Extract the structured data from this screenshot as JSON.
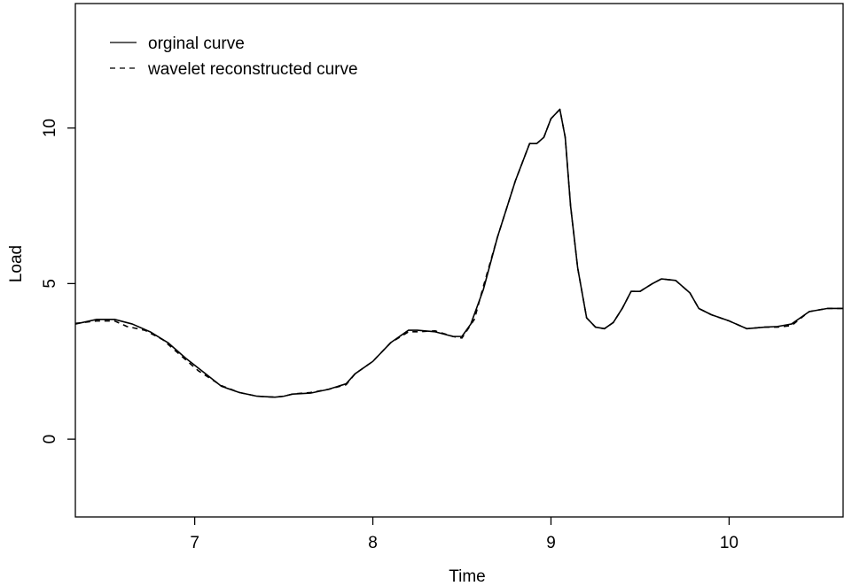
{
  "chart_data": {
    "type": "line",
    "title": "",
    "xlabel": "Time",
    "ylabel": "Load",
    "xlim": [
      6.33,
      10.64
    ],
    "ylim": [
      -2.5,
      14.0
    ],
    "xticks": [
      7,
      8,
      9,
      10
    ],
    "xtick_labels": [
      "7",
      "8",
      "9",
      "10"
    ],
    "yticks": [
      0,
      5,
      10
    ],
    "ytick_labels": [
      "0",
      "5",
      "10"
    ],
    "grid": false,
    "legend_position": "top-left",
    "series": [
      {
        "name": "orginal curve",
        "line_style": "solid",
        "color": "#000000",
        "x": [
          6.33,
          6.45,
          6.55,
          6.65,
          6.75,
          6.85,
          6.95,
          7.05,
          7.15,
          7.25,
          7.35,
          7.45,
          7.5,
          7.55,
          7.65,
          7.75,
          7.85,
          7.9,
          8.0,
          8.1,
          8.2,
          8.25,
          8.35,
          8.45,
          8.5,
          8.55,
          8.62,
          8.7,
          8.8,
          8.88,
          8.92,
          8.96,
          9.0,
          9.05,
          9.08,
          9.11,
          9.15,
          9.2,
          9.25,
          9.3,
          9.35,
          9.4,
          9.45,
          9.5,
          9.57,
          9.62,
          9.7,
          9.78,
          9.83,
          9.9,
          10.0,
          10.1,
          10.2,
          10.27,
          10.35,
          10.45,
          10.55,
          10.64
        ],
        "y": [
          3.7,
          3.85,
          3.85,
          3.7,
          3.45,
          3.1,
          2.6,
          2.15,
          1.7,
          1.5,
          1.38,
          1.35,
          1.38,
          1.45,
          1.48,
          1.6,
          1.78,
          2.1,
          2.5,
          3.1,
          3.5,
          3.5,
          3.45,
          3.3,
          3.3,
          3.7,
          4.8,
          6.5,
          8.3,
          9.5,
          9.5,
          9.7,
          10.3,
          10.6,
          9.7,
          7.5,
          5.5,
          3.9,
          3.6,
          3.55,
          3.75,
          4.2,
          4.75,
          4.75,
          5.0,
          5.15,
          5.1,
          4.7,
          4.2,
          4.0,
          3.8,
          3.55,
          3.6,
          3.62,
          3.7,
          4.1,
          4.2,
          4.2
        ]
      },
      {
        "name": "wavelet reconstructed curve",
        "line_style": "dashed",
        "color": "#000000",
        "x": [
          6.33,
          6.45,
          6.55,
          6.62,
          6.72,
          6.82,
          6.92,
          7.02,
          7.15,
          7.25,
          7.35,
          7.45,
          7.5,
          7.55,
          7.65,
          7.75,
          7.85,
          7.9,
          8.0,
          8.1,
          8.2,
          8.25,
          8.35,
          8.45,
          8.5,
          8.57,
          8.62,
          8.7,
          8.8,
          8.88,
          8.92,
          8.96,
          9.0,
          9.05,
          9.08,
          9.11,
          9.15,
          9.2,
          9.25,
          9.3,
          9.35,
          9.4,
          9.45,
          9.5,
          9.57,
          9.62,
          9.7,
          9.78,
          9.83,
          9.9,
          10.0,
          10.1,
          10.2,
          10.27,
          10.35,
          10.45,
          10.55,
          10.64
        ],
        "y": [
          3.72,
          3.8,
          3.8,
          3.62,
          3.5,
          3.2,
          2.7,
          2.2,
          1.72,
          1.5,
          1.38,
          1.35,
          1.38,
          1.45,
          1.5,
          1.6,
          1.75,
          2.1,
          2.5,
          3.1,
          3.45,
          3.45,
          3.48,
          3.3,
          3.25,
          3.85,
          4.9,
          6.5,
          8.3,
          9.5,
          9.5,
          9.7,
          10.3,
          10.6,
          9.7,
          7.5,
          5.5,
          3.9,
          3.6,
          3.55,
          3.75,
          4.2,
          4.75,
          4.75,
          5.0,
          5.15,
          5.1,
          4.7,
          4.2,
          4.0,
          3.8,
          3.55,
          3.6,
          3.6,
          3.65,
          4.1,
          4.2,
          4.2
        ]
      }
    ]
  }
}
